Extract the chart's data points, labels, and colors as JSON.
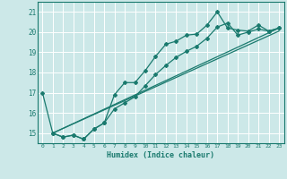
{
  "title": "",
  "xlabel": "Humidex (Indice chaleur)",
  "ylabel": "",
  "bg_color": "#cce8e8",
  "grid_color": "#ffffff",
  "line_color": "#1a7a6e",
  "xlim": [
    -0.5,
    23.5
  ],
  "ylim": [
    14.5,
    21.5
  ],
  "yticks": [
    15,
    16,
    17,
    18,
    19,
    20,
    21
  ],
  "xticks": [
    0,
    1,
    2,
    3,
    4,
    5,
    6,
    7,
    8,
    9,
    10,
    11,
    12,
    13,
    14,
    15,
    16,
    17,
    18,
    19,
    20,
    21,
    22,
    23
  ],
  "curve1_x": [
    0,
    1,
    2,
    3,
    4,
    5,
    6,
    7,
    8,
    9,
    10,
    11,
    12,
    13,
    14,
    15,
    16,
    17,
    18,
    19,
    20,
    21,
    22,
    23
  ],
  "curve1_y": [
    17.0,
    15.0,
    14.8,
    14.9,
    14.7,
    15.2,
    15.5,
    16.9,
    17.5,
    17.5,
    18.1,
    18.8,
    19.4,
    19.55,
    19.85,
    19.9,
    20.35,
    21.0,
    20.2,
    20.1,
    20.05,
    20.35,
    20.05,
    20.2
  ],
  "curve2_x": [
    1,
    2,
    3,
    4,
    5,
    6,
    7,
    8,
    9,
    10,
    11,
    12,
    13,
    14,
    15,
    16,
    17,
    18,
    19,
    20,
    21,
    22,
    23
  ],
  "curve2_y": [
    15.0,
    14.8,
    14.9,
    14.7,
    15.2,
    15.5,
    16.2,
    16.5,
    16.8,
    17.35,
    17.9,
    18.35,
    18.75,
    19.05,
    19.3,
    19.7,
    20.25,
    20.45,
    19.85,
    20.0,
    20.15,
    20.05,
    20.2
  ],
  "regline1_x": [
    1,
    23
  ],
  "regline1_y": [
    15.0,
    20.2
  ],
  "regline2_x": [
    1,
    23
  ],
  "regline2_y": [
    15.0,
    20.05
  ]
}
